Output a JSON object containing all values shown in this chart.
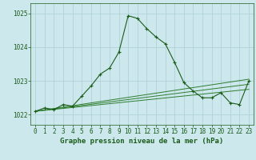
{
  "title": "Graphe pression niveau de la mer (hPa)",
  "background_color": "#cce8ec",
  "grid_color": "#aacdd4",
  "line_color_dark": "#1a5c1a",
  "line_color_light": "#2e7d2e",
  "xlim": [
    -0.5,
    23.5
  ],
  "ylim": [
    1021.7,
    1025.3
  ],
  "yticks": [
    1022,
    1023,
    1024,
    1025
  ],
  "xticks": [
    0,
    1,
    2,
    3,
    4,
    5,
    6,
    7,
    8,
    9,
    10,
    11,
    12,
    13,
    14,
    15,
    16,
    17,
    18,
    19,
    20,
    21,
    22,
    23
  ],
  "series_main": {
    "x": [
      0,
      1,
      2,
      3,
      4,
      5,
      6,
      7,
      8,
      9,
      10,
      11,
      12,
      13,
      14,
      15,
      16,
      17,
      18,
      19,
      20,
      21,
      22,
      23
    ],
    "y": [
      1022.1,
      1022.2,
      1022.15,
      1022.3,
      1022.25,
      1022.55,
      1022.85,
      1023.2,
      1023.38,
      1023.85,
      1024.93,
      1024.85,
      1024.55,
      1024.3,
      1024.1,
      1023.55,
      1022.95,
      1022.7,
      1022.5,
      1022.5,
      1022.65,
      1022.35,
      1022.3,
      1023.0
    ]
  },
  "linear_lines": [
    {
      "x": [
        0,
        23
      ],
      "y": [
        1022.1,
        1022.75
      ]
    },
    {
      "x": [
        0,
        23
      ],
      "y": [
        1022.1,
        1022.9
      ]
    },
    {
      "x": [
        0,
        23
      ],
      "y": [
        1022.1,
        1023.05
      ]
    }
  ],
  "tick_fontsize": 5.5,
  "title_fontsize": 6.5
}
